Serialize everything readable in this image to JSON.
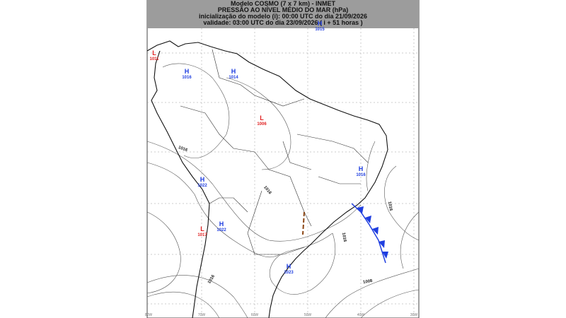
{
  "header": {
    "lines": [
      "Modelo COSMO (7 x 7 km) - INMET",
      "PRESSÃO AO NÍVEL MÉDIO DO MAR (hPa)",
      "inicialização do modelo (i): 00:00 UTC do dia 21/09/2026",
      "validade: 03:00 UTC do dia 23/09/2026 ( i + 51 horas )"
    ]
  },
  "centers": [
    {
      "type": "L",
      "value": "1011"
    },
    {
      "type": "H",
      "value": "1016"
    },
    {
      "type": "H",
      "value": "1014"
    },
    {
      "type": "L",
      "value": "1006"
    },
    {
      "type": "H",
      "value": "1015"
    },
    {
      "type": "H",
      "value": "1016"
    },
    {
      "type": "H",
      "value": "1022"
    },
    {
      "type": "H",
      "value": "1022"
    },
    {
      "type": "L",
      "value": "1017"
    },
    {
      "type": "H",
      "value": "1023"
    }
  ],
  "isobar_labels": [
    "1016",
    "1016",
    "1016",
    "1016",
    "1008",
    "1016"
  ],
  "longitudes": [
    "80W",
    "70W",
    "60W",
    "50W",
    "40W",
    "30W"
  ]
}
